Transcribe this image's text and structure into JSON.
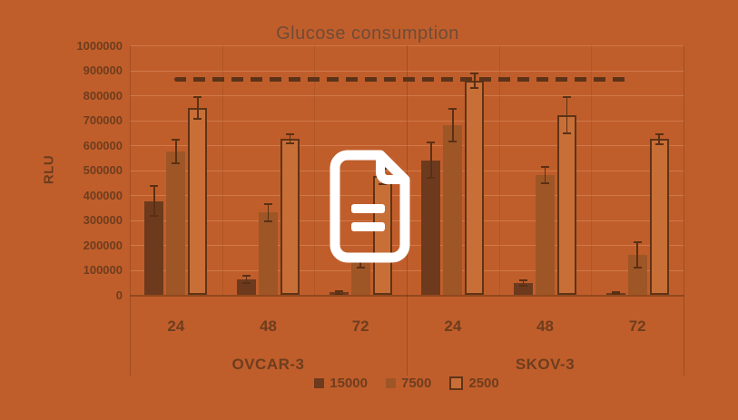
{
  "colors": {
    "background": "#c05e2b",
    "text": "#6e3d1e",
    "title_text": "#6f4c38",
    "outline": "#5f3316",
    "error_bar": "#5a3014",
    "reference_line": "#5c3318",
    "icon": "#ffffff"
  },
  "overlay_icon": "document-icon",
  "chart_data": {
    "type": "bar",
    "title": "Glucose consumption",
    "xlabel": "",
    "ylabel": "RLU",
    "ylim": [
      0,
      1000000
    ],
    "ytick_step": 100000,
    "ytick_labels": [
      "0",
      "100000",
      "200000",
      "300000",
      "400000",
      "500000",
      "600000",
      "700000",
      "800000",
      "900000",
      "1000000"
    ],
    "grid": "horizontal",
    "legend_position": "bottom",
    "panels": [
      {
        "label": "OVCAR-3",
        "categories": [
          "24",
          "48",
          "72"
        ]
      },
      {
        "label": "SKOV-3",
        "categories": [
          "24",
          "48",
          "72"
        ]
      }
    ],
    "series": [
      {
        "name": "15000",
        "style": "filled-dark",
        "color": "#6d3a1e",
        "values": [
          375000,
          62000,
          10000,
          540000,
          48000,
          6000
        ],
        "errors": [
          60000,
          15000,
          5000,
          70000,
          10000,
          4000
        ]
      },
      {
        "name": "7500",
        "style": "filled-medium",
        "color": "#9e5626",
        "values": [
          575000,
          330000,
          130000,
          680000,
          480000,
          160000
        ],
        "errors": [
          48000,
          35000,
          20000,
          65000,
          33000,
          50000
        ]
      },
      {
        "name": "2500",
        "style": "outlined",
        "color": "#c86f38",
        "outline": "#5f3316",
        "values": [
          750000,
          625000,
          475000,
          858000,
          720000,
          625000
        ],
        "errors": [
          43000,
          18000,
          30000,
          30000,
          73000,
          20000
        ]
      }
    ],
    "reference_line": {
      "value": 865000,
      "style": "dashed"
    }
  }
}
